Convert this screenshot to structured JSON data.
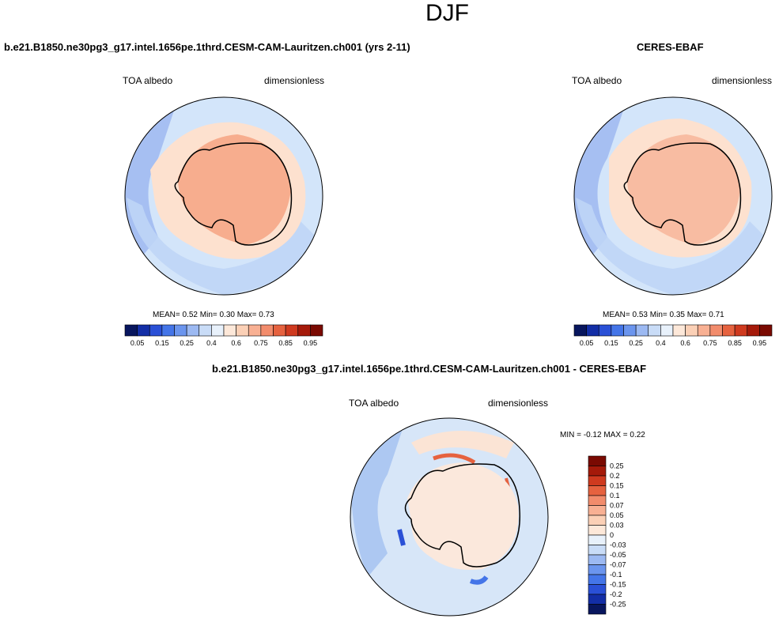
{
  "page": {
    "title": "DJF"
  },
  "panels": {
    "left": {
      "case_title": "b.e21.B1850.ne30pg3_g17.intel.1656pe.1thrd.CESM-CAM-Lauritzen.ch001 (yrs 2-11)",
      "variable": "TOA albedo",
      "units": "dimensionless",
      "stats": {
        "mean_label": "MEAN=",
        "mean": "0.52",
        "min_label": "Min=",
        "min": "0.30",
        "max_label": "Max=",
        "max": "0.73"
      }
    },
    "right": {
      "case_title": "CERES-EBAF",
      "variable": "TOA albedo",
      "units": "dimensionless",
      "stats": {
        "mean_label": "MEAN=",
        "mean": "0.53",
        "min_label": "Min=",
        "min": "0.35",
        "max_label": "Max=",
        "max": "0.71"
      }
    },
    "diff": {
      "case_title": "b.e21.B1850.ne30pg3_g17.intel.1656pe.1thrd.CESM-CAM-Lauritzen.ch001 - CERES-EBAF",
      "variable": "TOA albedo",
      "units": "dimensionless",
      "stats": {
        "min_label": "MIN =",
        "min": "-0.12",
        "max_label": "MAX =",
        "max": "0.22"
      }
    }
  },
  "chart_data": [
    {
      "type": "heatmap",
      "title": "TOA albedo",
      "projection": "south polar stereographic",
      "units": "dimensionless",
      "colorbar": {
        "orientation": "horizontal",
        "levels": [
          "0.05",
          "0.1",
          "0.15",
          "0.2",
          "0.25",
          "0.3",
          "0.4",
          "0.5",
          "0.6",
          "0.65",
          "0.75",
          "0.8",
          "0.85",
          "0.9",
          "0.95"
        ],
        "tick_labels": [
          "0.05",
          "0.15",
          "0.25",
          "0.4",
          "0.6",
          "0.75",
          "0.85",
          "0.95"
        ],
        "colors": [
          "#08165e",
          "#132ea6",
          "#2a50d6",
          "#4475e8",
          "#6b95ee",
          "#9cb9f2",
          "#c9dcf7",
          "#e8f1fb",
          "#fde8d9",
          "#fbd0b6",
          "#f8b093",
          "#f28c6c",
          "#e6623f",
          "#cf3a1f",
          "#a51a0a",
          "#7a0a02"
        ]
      },
      "stats": {
        "mean": 0.52,
        "min": 0.3,
        "max": 0.73
      }
    },
    {
      "type": "heatmap",
      "title": "TOA albedo",
      "projection": "south polar stereographic",
      "units": "dimensionless",
      "colorbar": {
        "orientation": "horizontal",
        "levels": [
          "0.05",
          "0.1",
          "0.15",
          "0.2",
          "0.25",
          "0.3",
          "0.4",
          "0.5",
          "0.6",
          "0.65",
          "0.75",
          "0.8",
          "0.85",
          "0.9",
          "0.95"
        ],
        "tick_labels": [
          "0.05",
          "0.15",
          "0.25",
          "0.4",
          "0.6",
          "0.75",
          "0.85",
          "0.95"
        ],
        "colors": [
          "#08165e",
          "#132ea6",
          "#2a50d6",
          "#4475e8",
          "#6b95ee",
          "#9cb9f2",
          "#c9dcf7",
          "#e8f1fb",
          "#fde8d9",
          "#fbd0b6",
          "#f8b093",
          "#f28c6c",
          "#e6623f",
          "#cf3a1f",
          "#a51a0a",
          "#7a0a02"
        ]
      },
      "stats": {
        "mean": 0.53,
        "min": 0.35,
        "max": 0.71
      }
    },
    {
      "type": "heatmap",
      "title": "TOA albedo (difference)",
      "projection": "south polar stereographic",
      "units": "dimensionless",
      "colorbar": {
        "orientation": "vertical",
        "tick_labels": [
          "0.25",
          "0.2",
          "0.15",
          "0.1",
          "0.07",
          "0.05",
          "0.03",
          "0",
          "-0.03",
          "-0.05",
          "-0.07",
          "-0.1",
          "-0.15",
          "-0.2",
          "-0.25"
        ],
        "colors": [
          "#7a0a02",
          "#a51a0a",
          "#cf3a1f",
          "#e6623f",
          "#f28c6c",
          "#f8b093",
          "#fbd0b6",
          "#fde8d9",
          "#e8f1fb",
          "#c9dcf7",
          "#9cb9f2",
          "#6b95ee",
          "#4475e8",
          "#2a50d6",
          "#132ea6",
          "#08165e"
        ]
      },
      "stats": {
        "min": -0.12,
        "max": 0.22
      }
    }
  ]
}
